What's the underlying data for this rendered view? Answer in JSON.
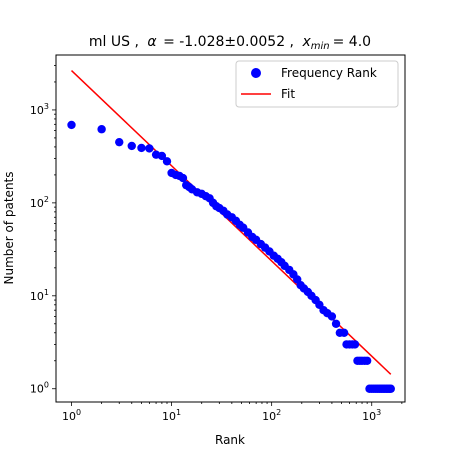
{
  "chart_data": {
    "type": "scatter",
    "title": "ml US , α = -1.028±0.0052 , x_min = 4.0",
    "title_parts": {
      "prefix": "ml US ,",
      "alpha_symbol": "α",
      "alpha_value": "= -1.028±0.0052 ,",
      "xmin_symbol": "x",
      "xmin_subscript": "min",
      "xmin_value": "= 4.0"
    },
    "xlabel": "Rank",
    "ylabel": "Number of patents",
    "xscale": "log",
    "yscale": "log",
    "xlim": [
      0.7,
      2150
    ],
    "ylim": [
      0.72,
      3900
    ],
    "x_ticks": [
      {
        "value": 1,
        "base": "10",
        "exp": "0"
      },
      {
        "value": 10,
        "base": "10",
        "exp": "1"
      },
      {
        "value": 100,
        "base": "10",
        "exp": "2"
      },
      {
        "value": 1000,
        "base": "10",
        "exp": "3"
      }
    ],
    "y_ticks": [
      {
        "value": 1,
        "base": "10",
        "exp": "0"
      },
      {
        "value": 10,
        "base": "10",
        "exp": "1"
      },
      {
        "value": 100,
        "base": "10",
        "exp": "2"
      },
      {
        "value": 1000,
        "base": "10",
        "exp": "3"
      }
    ],
    "grid": false,
    "legend": {
      "placement": "top-right",
      "entries": [
        {
          "label": "Frequency Rank",
          "marker": "circle",
          "color": "#0000ff"
        },
        {
          "label": "Fit",
          "marker": "line",
          "color": "#ff0000"
        }
      ]
    },
    "series": [
      {
        "name": "Frequency Rank",
        "kind": "scatter",
        "color": "#0000ff",
        "points": [
          [
            1,
            690
          ],
          [
            2,
            620
          ],
          [
            3,
            450
          ],
          [
            4,
            410
          ],
          [
            5,
            390
          ],
          [
            6,
            385
          ],
          [
            7,
            330
          ],
          [
            8,
            320
          ],
          [
            9,
            280
          ],
          [
            10,
            210
          ],
          [
            11,
            200
          ],
          [
            12,
            195
          ],
          [
            13,
            185
          ],
          [
            14,
            155
          ],
          [
            15,
            148
          ],
          [
            16,
            140
          ],
          [
            18,
            130
          ],
          [
            20,
            125
          ],
          [
            22,
            118
          ],
          [
            24,
            112
          ],
          [
            26,
            100
          ],
          [
            28,
            92
          ],
          [
            30,
            88
          ],
          [
            33,
            82
          ],
          [
            36,
            75
          ],
          [
            40,
            70
          ],
          [
            44,
            64
          ],
          [
            48,
            58
          ],
          [
            52,
            54
          ],
          [
            58,
            48
          ],
          [
            64,
            43
          ],
          [
            70,
            40
          ],
          [
            78,
            36
          ],
          [
            86,
            33
          ],
          [
            95,
            30
          ],
          [
            105,
            27
          ],
          [
            115,
            25
          ],
          [
            125,
            23
          ],
          [
            135,
            21
          ],
          [
            150,
            19
          ],
          [
            165,
            17
          ],
          [
            180,
            15
          ],
          [
            195,
            13
          ],
          [
            210,
            12
          ],
          [
            230,
            11
          ],
          [
            250,
            10
          ],
          [
            275,
            9
          ],
          [
            300,
            8
          ],
          [
            330,
            7
          ],
          [
            360,
            6.5
          ],
          [
            400,
            6
          ],
          [
            440,
            5
          ],
          [
            480,
            4
          ],
          [
            530,
            4
          ],
          [
            560,
            3
          ],
          [
            600,
            3
          ],
          [
            640,
            3
          ],
          [
            680,
            3
          ],
          [
            720,
            2
          ],
          [
            760,
            2
          ],
          [
            800,
            2
          ],
          [
            850,
            2
          ],
          [
            900,
            2
          ],
          [
            950,
            1
          ],
          [
            1000,
            1
          ],
          [
            1050,
            1
          ],
          [
            1100,
            1
          ],
          [
            1150,
            1
          ],
          [
            1200,
            1
          ],
          [
            1250,
            1
          ],
          [
            1300,
            1
          ],
          [
            1350,
            1
          ],
          [
            1400,
            1
          ],
          [
            1450,
            1
          ],
          [
            1500,
            1
          ],
          [
            1550,
            1
          ]
        ]
      },
      {
        "name": "Fit",
        "kind": "line",
        "color": "#ff0000",
        "points": [
          [
            1,
            2650
          ],
          [
            1550,
            1.43
          ]
        ]
      }
    ]
  }
}
